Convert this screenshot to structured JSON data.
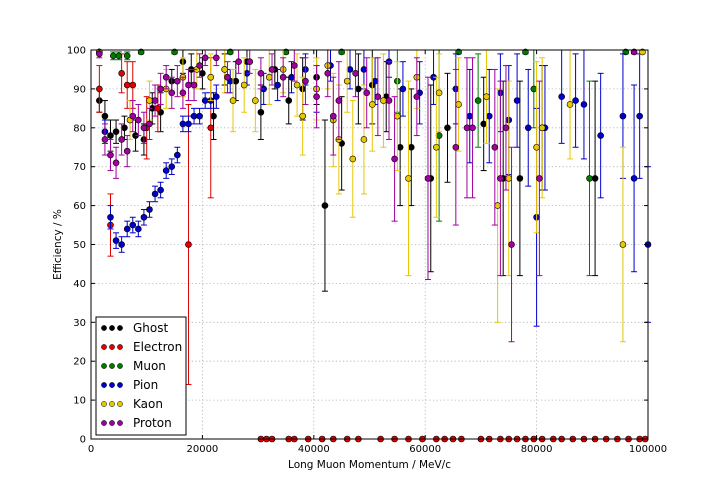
{
  "chart_data": {
    "type": "scatter",
    "title": "",
    "xlabel": "Long Muon Momentum / MeV/c",
    "ylabel": "Efficiency / %",
    "xlim": [
      0,
      100000
    ],
    "ylim": [
      0,
      100
    ],
    "xticks": [
      0,
      20000,
      40000,
      60000,
      80000,
      100000
    ],
    "yticks": [
      0,
      10,
      20,
      30,
      40,
      50,
      60,
      70,
      80,
      90,
      100
    ],
    "xtick_labels": [
      "0",
      "20000",
      "40000",
      "60000",
      "80000",
      "100000"
    ],
    "ytick_labels": [
      "0",
      "10",
      "20",
      "30",
      "40",
      "50",
      "60",
      "70",
      "80",
      "90",
      "100"
    ],
    "grid": true,
    "legend_position": "lower-left",
    "error_bars": true,
    "series": [
      {
        "name": "Ghost",
        "color": "#000000",
        "points": [
          [
            1500,
            87,
            3
          ],
          [
            2500,
            83,
            4
          ],
          [
            3500,
            78,
            4
          ],
          [
            4500,
            79,
            3
          ],
          [
            6000,
            80,
            3
          ],
          [
            8000,
            78,
            4
          ],
          [
            9500,
            77,
            4
          ],
          [
            11000,
            85,
            4
          ],
          [
            12500,
            84,
            5
          ],
          [
            14500,
            92,
            3
          ],
          [
            16500,
            97,
            3
          ],
          [
            18000,
            95,
            4
          ],
          [
            20000,
            94,
            4
          ],
          [
            22000,
            83,
            6
          ],
          [
            24000,
            95,
            4
          ],
          [
            26000,
            92,
            5
          ],
          [
            28000,
            97,
            3
          ],
          [
            30500,
            84,
            7
          ],
          [
            33000,
            95,
            5
          ],
          [
            35500,
            87,
            6
          ],
          [
            38000,
            90,
            8
          ],
          [
            40500,
            93,
            7
          ],
          [
            42000,
            60,
            22
          ],
          [
            45000,
            76,
            12
          ],
          [
            48000,
            90,
            9
          ],
          [
            50500,
            91,
            10
          ],
          [
            53000,
            88,
            9
          ],
          [
            55500,
            75,
            15
          ],
          [
            57500,
            75,
            15
          ],
          [
            61000,
            67,
            24
          ],
          [
            64000,
            80,
            14
          ],
          [
            70500,
            81,
            12
          ],
          [
            74000,
            67,
            25
          ],
          [
            77000,
            67,
            25
          ],
          [
            81000,
            80,
            16
          ],
          [
            90500,
            67,
            25
          ]
        ]
      },
      {
        "name": "Electron",
        "color": "#e00000",
        "points": [
          [
            1500,
            90,
            6
          ],
          [
            3500,
            55,
            8
          ],
          [
            5500,
            94,
            5
          ],
          [
            6500,
            91,
            6
          ],
          [
            7500,
            91,
            6
          ],
          [
            10000,
            80,
            8
          ],
          [
            12000,
            85,
            6
          ],
          [
            17500,
            50,
            36
          ],
          [
            21500,
            80,
            18
          ],
          [
            30500,
            0,
            0
          ],
          [
            31500,
            0,
            0
          ],
          [
            32500,
            0,
            0
          ],
          [
            35500,
            0,
            0
          ],
          [
            36500,
            0,
            0
          ],
          [
            39000,
            0,
            0
          ],
          [
            41500,
            0,
            0
          ],
          [
            43500,
            0,
            0
          ],
          [
            46000,
            0,
            0
          ],
          [
            48000,
            0,
            0
          ],
          [
            52000,
            0,
            0
          ],
          [
            54500,
            0,
            0
          ],
          [
            57000,
            0,
            0
          ],
          [
            59500,
            0,
            0
          ],
          [
            62000,
            0,
            0
          ],
          [
            63500,
            0,
            0
          ],
          [
            65000,
            0,
            0
          ],
          [
            66500,
            0,
            0
          ],
          [
            70000,
            0,
            0
          ],
          [
            71500,
            0,
            0
          ],
          [
            73500,
            0,
            0
          ],
          [
            75000,
            0,
            0
          ],
          [
            76500,
            0,
            0
          ],
          [
            78000,
            0,
            0
          ],
          [
            79500,
            0,
            0
          ],
          [
            81000,
            0,
            0
          ],
          [
            83000,
            0,
            0
          ],
          [
            84500,
            0,
            0
          ],
          [
            86500,
            0,
            0
          ],
          [
            88500,
            0,
            0
          ],
          [
            90500,
            0,
            0
          ],
          [
            92500,
            0,
            0
          ],
          [
            94500,
            0,
            0
          ],
          [
            96500,
            0,
            0
          ],
          [
            98500,
            0,
            0
          ],
          [
            99500,
            0,
            0
          ]
        ]
      },
      {
        "name": "Muon",
        "color": "#007a00",
        "points": [
          [
            1500,
            99.5,
            0.5
          ],
          [
            4000,
            98.5,
            1
          ],
          [
            5000,
            98.5,
            1
          ],
          [
            6500,
            98.5,
            1
          ],
          [
            9000,
            99.5,
            0.5
          ],
          [
            15000,
            99.5,
            0.5
          ],
          [
            25000,
            99.5,
            0.5
          ],
          [
            35000,
            99.5,
            0.5
          ],
          [
            45000,
            99.5,
            0.5
          ],
          [
            55000,
            92,
            8
          ],
          [
            62500,
            78,
            22
          ],
          [
            66000,
            99.5,
            0.5
          ],
          [
            69500,
            87,
            12
          ],
          [
            78000,
            99.5,
            0.5
          ],
          [
            79500,
            90,
            10
          ],
          [
            89500,
            67,
            25
          ],
          [
            96000,
            99.5,
            0.5
          ]
        ]
      },
      {
        "name": "Pion",
        "color": "#0000cc",
        "points": [
          [
            2500,
            79,
            3
          ],
          [
            3500,
            57,
            3
          ],
          [
            4500,
            51,
            2
          ],
          [
            5500,
            50,
            2
          ],
          [
            6500,
            54,
            2
          ],
          [
            7500,
            55,
            2
          ],
          [
            8500,
            54,
            2
          ],
          [
            9500,
            57,
            2
          ],
          [
            10500,
            59,
            2
          ],
          [
            11500,
            63,
            2
          ],
          [
            12500,
            64,
            2
          ],
          [
            13500,
            69,
            2
          ],
          [
            14500,
            70,
            2
          ],
          [
            15500,
            73,
            2
          ],
          [
            16500,
            81,
            2
          ],
          [
            17500,
            81,
            2
          ],
          [
            18500,
            83,
            2
          ],
          [
            19500,
            83,
            2
          ],
          [
            20500,
            87,
            2
          ],
          [
            21500,
            87,
            2
          ],
          [
            22500,
            88,
            3
          ],
          [
            25000,
            92,
            3
          ],
          [
            28000,
            94,
            3
          ],
          [
            31000,
            90,
            4
          ],
          [
            33500,
            91,
            4
          ],
          [
            36000,
            93,
            4
          ],
          [
            38500,
            95,
            4
          ],
          [
            40500,
            90,
            6
          ],
          [
            43000,
            96,
            4
          ],
          [
            46500,
            95,
            5
          ],
          [
            49000,
            95,
            5
          ],
          [
            51000,
            92,
            6
          ],
          [
            53500,
            97,
            4
          ],
          [
            56000,
            90,
            7
          ],
          [
            59000,
            89,
            8
          ],
          [
            61500,
            93,
            7
          ],
          [
            65500,
            90,
            9
          ],
          [
            68000,
            83,
            12
          ],
          [
            71500,
            83,
            12
          ],
          [
            73500,
            89,
            10
          ],
          [
            75000,
            82,
            14
          ],
          [
            76500,
            87,
            12
          ],
          [
            78500,
            80,
            15
          ],
          [
            80000,
            57,
            28
          ],
          [
            81500,
            80,
            16
          ],
          [
            84500,
            88,
            12
          ],
          [
            87000,
            87,
            12
          ],
          [
            88500,
            86,
            14
          ],
          [
            91500,
            78,
            16
          ],
          [
            95500,
            83,
            16
          ],
          [
            97500,
            67,
            24
          ],
          [
            98500,
            83,
            16
          ],
          [
            100000,
            50,
            20
          ]
        ]
      },
      {
        "name": "Kaon",
        "color": "#e8c800",
        "points": [
          [
            1500,
            99.5,
            0.5
          ],
          [
            7000,
            82,
            5
          ],
          [
            10500,
            87,
            5
          ],
          [
            13500,
            90,
            5
          ],
          [
            16500,
            93,
            5
          ],
          [
            19000,
            95,
            5
          ],
          [
            21500,
            93,
            6
          ],
          [
            24000,
            95,
            6
          ],
          [
            25500,
            87,
            8
          ],
          [
            27500,
            91,
            7
          ],
          [
            29500,
            87,
            8
          ],
          [
            32000,
            93,
            7
          ],
          [
            34500,
            95,
            6
          ],
          [
            37000,
            91,
            8
          ],
          [
            38000,
            83,
            10
          ],
          [
            40500,
            90,
            8
          ],
          [
            42500,
            96,
            6
          ],
          [
            43500,
            82,
            12
          ],
          [
            44500,
            77,
            14
          ],
          [
            46000,
            92,
            8
          ],
          [
            47000,
            72,
            15
          ],
          [
            49000,
            77,
            14
          ],
          [
            50500,
            86,
            12
          ],
          [
            52500,
            87,
            12
          ],
          [
            55000,
            83,
            14
          ],
          [
            57000,
            67,
            25
          ],
          [
            58500,
            93,
            8
          ],
          [
            62000,
            75,
            18
          ],
          [
            62500,
            89,
            10
          ],
          [
            66000,
            86,
            12
          ],
          [
            71000,
            88,
            12
          ],
          [
            73000,
            60,
            30
          ],
          [
            75000,
            67,
            25
          ],
          [
            80000,
            75,
            22
          ],
          [
            81000,
            80,
            18
          ],
          [
            86000,
            86,
            14
          ],
          [
            95500,
            50,
            25
          ],
          [
            99000,
            99.5,
            0.5
          ]
        ]
      },
      {
        "name": "Proton",
        "color": "#a000a0",
        "points": [
          [
            1500,
            99,
            1
          ],
          [
            2500,
            77,
            4
          ],
          [
            3500,
            73,
            4
          ],
          [
            4500,
            71,
            4
          ],
          [
            5500,
            77,
            4
          ],
          [
            6500,
            74,
            4
          ],
          [
            7500,
            83,
            4
          ],
          [
            8500,
            82,
            4
          ],
          [
            9500,
            80,
            4
          ],
          [
            10500,
            81,
            4
          ],
          [
            11500,
            87,
            4
          ],
          [
            12500,
            90,
            4
          ],
          [
            13500,
            93,
            3
          ],
          [
            14500,
            89,
            4
          ],
          [
            15500,
            92,
            4
          ],
          [
            16500,
            89,
            4
          ],
          [
            17500,
            91,
            4
          ],
          [
            18500,
            91,
            4
          ],
          [
            19500,
            96,
            3
          ],
          [
            20500,
            98,
            2
          ],
          [
            22500,
            98,
            2
          ],
          [
            24500,
            93,
            4
          ],
          [
            26500,
            97,
            3
          ],
          [
            28500,
            97,
            3
          ],
          [
            30500,
            94,
            4
          ],
          [
            32500,
            95,
            4
          ],
          [
            34500,
            93,
            5
          ],
          [
            36500,
            96,
            4
          ],
          [
            38500,
            92,
            6
          ],
          [
            40500,
            88,
            8
          ],
          [
            42500,
            94,
            6
          ],
          [
            43500,
            83,
            10
          ],
          [
            44500,
            87,
            10
          ],
          [
            47500,
            94,
            6
          ],
          [
            49500,
            89,
            9
          ],
          [
            51500,
            88,
            10
          ],
          [
            53500,
            87,
            10
          ],
          [
            54500,
            72,
            16
          ],
          [
            58500,
            88,
            10
          ],
          [
            60500,
            67,
            26
          ],
          [
            65500,
            75,
            20
          ],
          [
            67500,
            80,
            18
          ],
          [
            68500,
            80,
            18
          ],
          [
            72500,
            75,
            20
          ],
          [
            73500,
            67,
            25
          ],
          [
            74500,
            80,
            16
          ],
          [
            75500,
            50,
            25
          ],
          [
            80500,
            67,
            25
          ],
          [
            97500,
            99.5,
            0.5
          ]
        ]
      }
    ]
  }
}
